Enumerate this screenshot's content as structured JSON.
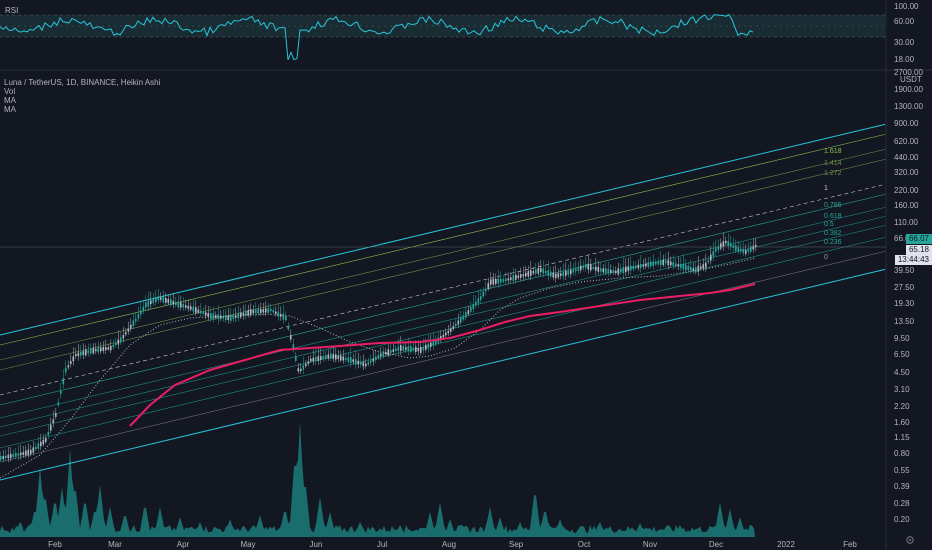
{
  "rsi": {
    "label": "RSI",
    "scale_labels": [
      "100.00",
      "60.00",
      "30.00",
      "18.00"
    ],
    "line_color": "#26c6da"
  },
  "main": {
    "legend": {
      "title": "Luna / TetherUS, 1D, BINANCE, Heikin Ashi",
      "vol": "Vol",
      "ma1": "MA",
      "ma2": "MA"
    },
    "price_scale": [
      "2700.00",
      "1900.00",
      "1300.00",
      "900.00",
      "620.00",
      "440.00",
      "320.00",
      "220.00",
      "160.00",
      "110.00",
      "66.07",
      "39.50",
      "27.50",
      "19.30",
      "13.50",
      "9.50",
      "6.50",
      "4.50",
      "3.10",
      "2.20",
      "1.60",
      "1.15",
      "0.80",
      "0.55",
      "0.39",
      "0.28",
      "0.20"
    ],
    "price_unit": "USDT",
    "last_price": "66.07",
    "current_price": "65.18",
    "countdown": "13:44:43",
    "fib_levels": [
      "1.618",
      "1.414",
      "1.272",
      "1",
      "0.786",
      "0.618",
      "0.5",
      "0.382",
      "0.236",
      "0"
    ],
    "time_axis": [
      "Feb",
      "Mar",
      "Apr",
      "May",
      "Jun",
      "Jul",
      "Aug",
      "Sep",
      "Oct",
      "Nov",
      "Dec",
      "2022",
      "Feb"
    ],
    "corner_icon": "settings-icon",
    "colors": {
      "background": "#131722",
      "channel": "#26c6da",
      "ma_red": "#e91e63",
      "ma_dotted": "#b2b5be",
      "candle_up": "#26a69a",
      "candle_down": "#b0b6bd",
      "volume": "#1b7e7a",
      "fib_green": "#4caf50",
      "price_tag_bg": "#26a69a"
    }
  }
}
